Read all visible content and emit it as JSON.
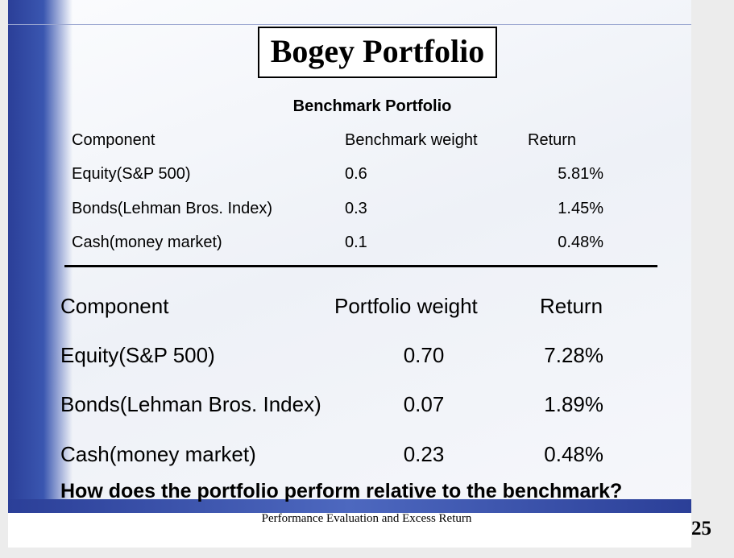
{
  "title": "Bogey Portfolio",
  "benchmark_table": {
    "title": "Benchmark Portfolio",
    "header": [
      "Component",
      "Benchmark weight",
      "Return"
    ],
    "rows": [
      [
        "Equity(S&P 500)",
        "0.6",
        "5.81%"
      ],
      [
        "Bonds(Lehman Bros. Index)",
        "0.3",
        "1.45%"
      ],
      [
        "Cash(money market)",
        "0.1",
        "0.48%"
      ]
    ]
  },
  "portfolio_table": {
    "header": [
      "Component",
      "Portfolio weight",
      "Return"
    ],
    "rows": [
      [
        "Equity(S&P 500)",
        "0.70",
        "7.28%"
      ],
      [
        "Bonds(Lehman Bros. Index)",
        "0.07",
        "1.89%"
      ],
      [
        "Cash(money market)",
        "0.23",
        "0.48%"
      ]
    ]
  },
  "question": "How does the portfolio perform relative to the benchmark?",
  "footer": "Performance Evaluation and Excess Return",
  "page_number": "25"
}
